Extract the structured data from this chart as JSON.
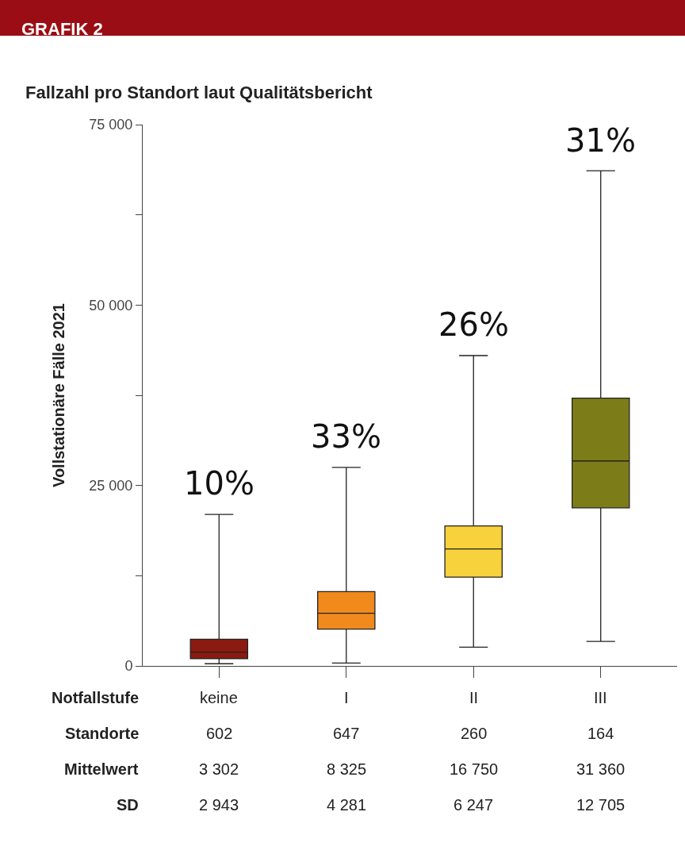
{
  "chart_data": {
    "type": "box",
    "title": "GRAFIK 2",
    "subtitle": "Fallzahl pro Standort laut Qualitätsbericht",
    "ylabel": "Vollstationäre Fälle 2021",
    "xlabel": "Notfallstufe",
    "categories": [
      "keine",
      "I",
      "II",
      "III"
    ],
    "colors": [
      "#8b1a10",
      "#f08a1c",
      "#f7d23c",
      "#7c7d18"
    ],
    "boxes": [
      {
        "low": 300,
        "q1": 1000,
        "median": 1900,
        "q3": 3700,
        "high": 21000
      },
      {
        "low": 400,
        "q1": 5100,
        "median": 7300,
        "q3": 10300,
        "high": 27500
      },
      {
        "low": 2600,
        "q1": 12300,
        "median": 16200,
        "q3": 19400,
        "high": 43000
      },
      {
        "low": 3400,
        "q1": 21900,
        "median": 28400,
        "q3": 37100,
        "high": 68600
      }
    ],
    "ylim": [
      0,
      75000
    ],
    "yticks": [
      {
        "value": 0,
        "label": "0"
      },
      {
        "value": 12500,
        "label": null
      },
      {
        "value": 25000,
        "label": "25 000"
      },
      {
        "value": 37500,
        "label": null
      },
      {
        "value": 50000,
        "label": "50 000"
      },
      {
        "value": 62500,
        "label": null
      },
      {
        "value": 75000,
        "label": "75 000"
      }
    ],
    "legend": false,
    "annotations": [
      "10%",
      "33%",
      "26%",
      "31%",
      "Standorte",
      "602",
      "647",
      "260",
      "164",
      "Mittelwert",
      "3 302",
      "8 325",
      "16 750",
      "31 360",
      "SD",
      "2 943",
      "4 281",
      "6 247",
      "12 705"
    ]
  }
}
